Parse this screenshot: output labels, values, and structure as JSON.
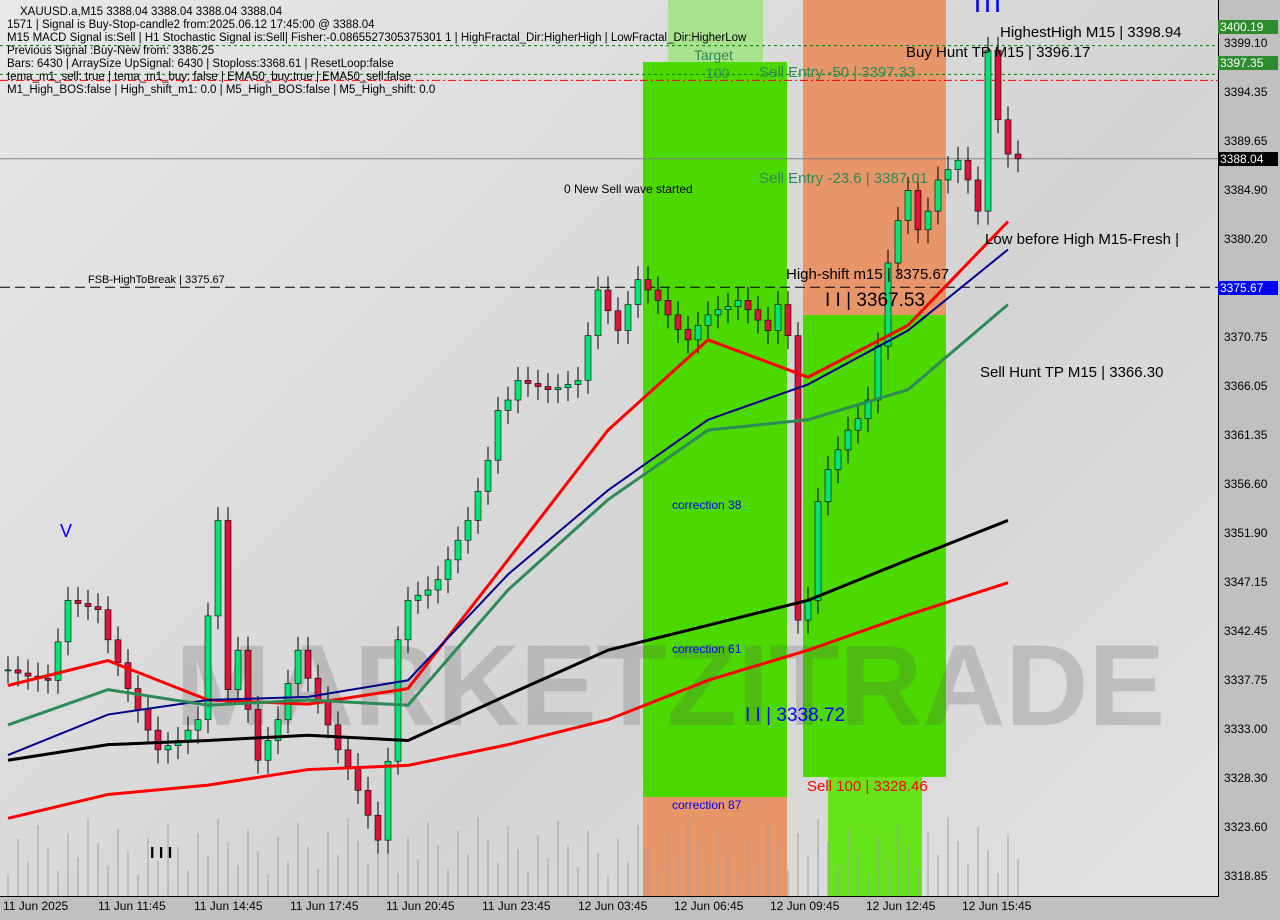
{
  "header": {
    "symbol_line": "XAUUSD.a,M15  3388.04 3388.04 3388.04 3388.04",
    "lines": [
      "1571 | Signal is Buy-Stop-candle2 from:2025.06.12 17:45:00 @ 3388.04",
      "M15 MACD Signal is:Sell | H1 Stochastic Signal is:Sell| Fisher:-0.0865527305375301 1 | HighFractal_Dir:HigherHigh | LowFractal_Dir:HigherLow",
      "Previous Signal :Buy-New from: 3386.25",
      "Bars: 6430 | ArraySize UpSignal: 6430 | Stoploss:3368.61 | ResetLoop:false",
      "tema_m1_sell: true | tema_m1_buy: false | EMA50_buy:true | EMA50_sell:false",
      "M1_High_BOS:false | High_shift_m1: 0.0 | M5_High_BOS:false | M5_High_shift: 0.0"
    ]
  },
  "annotations": {
    "fsb": "FSB-HighToBreak | 3375.67",
    "new_sell_wave": "0 New Sell wave started",
    "correction38": "correction 38",
    "correction61": "correction 61",
    "correction87": "correction 87",
    "sell100": "Sell 100 | 3328.46",
    "level_3338": "I I | 3338.72",
    "level_3367": "I I | 3367.53",
    "high_shift": "High-shift m15 | 3375.67",
    "sell_entry_50": "Sell Entry -50 | 3397.33",
    "sell_entry_236": "Sell Entry -23.6 | 3387.01",
    "hundred": "100",
    "target": "Target",
    "highest_high": "HighestHigh   M15 | 3398.94",
    "buy_hunt": "Buy Hunt TP M15 | 3396.17",
    "low_before_high": "Low before High   M15-Fresh |",
    "sell_hunt": "Sell Hunt TP M15 | 3366.30",
    "v_mark": "V",
    "top_bars": "I I I",
    "bottom_bars": "I I I",
    "watermark": "MARKETZITRADE"
  },
  "price_tags": {
    "highest": "3400.19",
    "buy_tp": "3397.35",
    "current": "3388.04",
    "high_break": "3375.67"
  },
  "colors": {
    "bull": "#00e676",
    "bear": "#dc143c",
    "ema_fast": "#ff0000",
    "ema_mid_blue": "#00008b",
    "ema_mid_green": "#2e8b57",
    "ema_200": "#000000",
    "ema_slow": "#ff0000",
    "zone_green": "#4cd900",
    "zone_orange": "#e8956a",
    "tag_green": "#2e8b2e",
    "tag_blue": "#0000ff"
  },
  "chart_data": {
    "type": "candlestick",
    "title": "XAUUSD.a,M15",
    "ylim": [
      3316.5,
      3403.4
    ],
    "y_ticks": [
      "3399.10",
      "3394.35",
      "3389.65",
      "3384.90",
      "3380.20",
      "3375.67",
      "3370.75",
      "3366.05",
      "3361.35",
      "3356.60",
      "3351.90",
      "3347.15",
      "3342.45",
      "3337.75",
      "3333.00",
      "3328.30",
      "3323.60",
      "3318.85"
    ],
    "x_ticks": [
      "11 Jun 2025",
      "11 Jun 11:45",
      "11 Jun 14:45",
      "11 Jun 17:45",
      "11 Jun 20:45",
      "11 Jun 23:45",
      "12 Jun 03:45",
      "12 Jun 06:45",
      "12 Jun 09:45",
      "12 Jun 12:45",
      "12 Jun 15:45"
    ],
    "closes": [
      3338.8,
      3338.5,
      3338.2,
      3338.0,
      3337.8,
      3341.5,
      3345.5,
      3345.2,
      3344.9,
      3344.6,
      3341.7,
      3339.5,
      3337.0,
      3335.0,
      3333.0,
      3331.1,
      3331.5,
      3332.0,
      3333.0,
      3334.0,
      3344.0,
      3353.2,
      3336.9,
      3340.7,
      3335.0,
      3330.1,
      3332.0,
      3334.0,
      3337.5,
      3340.7,
      3338.0,
      3335.9,
      3333.5,
      3331.1,
      3329.5,
      3327.2,
      3324.8,
      3322.4,
      3330.0,
      3341.7,
      3345.5,
      3346.0,
      3346.5,
      3347.5,
      3349.4,
      3351.3,
      3353.2,
      3356.0,
      3359.0,
      3363.8,
      3364.8,
      3366.7,
      3366.4,
      3366.1,
      3365.8,
      3366.0,
      3366.3,
      3366.7,
      3371.0,
      3375.4,
      3373.4,
      3371.5,
      3374.0,
      3376.4,
      3375.4,
      3374.4,
      3373.0,
      3371.6,
      3370.6,
      3372.0,
      3373.0,
      3373.5,
      3373.8,
      3374.4,
      3373.5,
      3372.5,
      3371.5,
      3374.0,
      3371.0,
      3343.6,
      3345.5,
      3355.0,
      3358.1,
      3360.0,
      3361.9,
      3363.0,
      3364.8,
      3370.0,
      3378.0,
      3382.1,
      3385.0,
      3381.2,
      3383.0,
      3386.0,
      3387.0,
      3387.9,
      3386.0,
      3383.0,
      3398.5,
      3391.8,
      3388.5,
      3388.04
    ],
    "series": [
      {
        "key": "ema_fast",
        "values": [
          3337.3,
          3339.7,
          3335.9,
          3335.5,
          3337.0,
          3349.4,
          3361.9,
          3370.6,
          3367.0,
          3372.0,
          3382.0
        ]
      },
      {
        "key": "ema_mid_blue",
        "values": [
          3330.6,
          3334.5,
          3335.9,
          3336.2,
          3337.8,
          3348.0,
          3356.1,
          3362.9,
          3366.3,
          3371.5,
          3379.3
        ]
      },
      {
        "key": "ema_mid_green",
        "values": [
          3333.5,
          3336.9,
          3335.4,
          3335.9,
          3335.4,
          3346.5,
          3355.2,
          3361.9,
          3362.9,
          3365.8,
          3374.0
        ]
      },
      {
        "key": "ema_200",
        "values": [
          3330.1,
          3331.6,
          3332.0,
          3332.5,
          3332.0,
          3336.4,
          3340.7,
          3343.1,
          3345.5,
          3349.4,
          3353.2
        ]
      },
      {
        "key": "ema_slow",
        "values": [
          3324.5,
          3326.8,
          3327.7,
          3329.2,
          3329.6,
          3331.6,
          3334.0,
          3337.8,
          3340.7,
          3344.1,
          3347.2
        ]
      }
    ],
    "hlines": [
      {
        "price": 3375.67,
        "style": "dashed",
        "color": "#000000"
      },
      {
        "price": 3388.04,
        "style": "solid",
        "color": "#808080"
      },
      {
        "price": 3396.17,
        "style": "dotted",
        "color": "#008000"
      },
      {
        "price": 3398.94,
        "style": "dotted",
        "color": "#008000"
      },
      {
        "price": 3395.6,
        "style": "dashdot",
        "color": "#ff0000"
      }
    ],
    "grid": false
  }
}
